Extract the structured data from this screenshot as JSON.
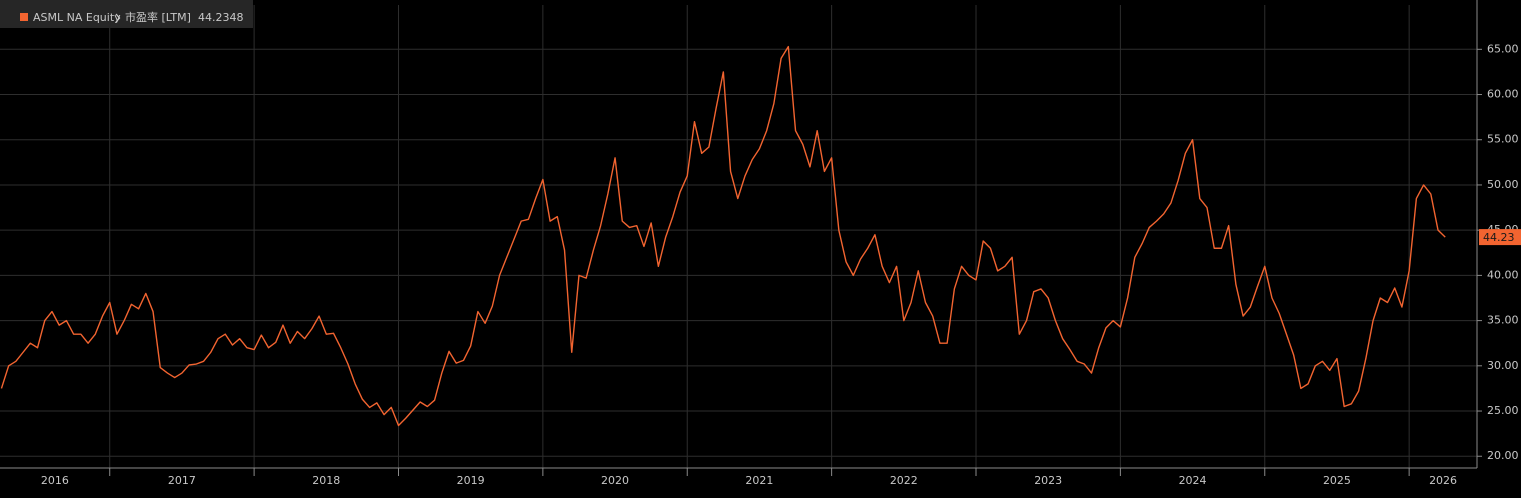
{
  "chart_data": {
    "type": "line",
    "series": [
      {
        "name": "ASML NA Equity",
        "color": "#f26430",
        "values": [
          27.5,
          30,
          30.5,
          31.5,
          32.5,
          32,
          35,
          36,
          34.5,
          35,
          33.5,
          33.5,
          32.5,
          33.5,
          35.5,
          37,
          33.5,
          35,
          36.8,
          36.3,
          38,
          36,
          29.8,
          29.2,
          28.7,
          29.2,
          30.1,
          30.2,
          30.5,
          31.5,
          33,
          33.5,
          32.3,
          33,
          32,
          31.8,
          33.4,
          32,
          32.6,
          34.5,
          32.5,
          33.8,
          33,
          34.1,
          35.5,
          33.5,
          33.6,
          32,
          30.2,
          28,
          26.3,
          25.4,
          25.9,
          24.6,
          25.4,
          23.4,
          24.2,
          25.1,
          26,
          25.5,
          26.2,
          29.2,
          31.6,
          30.3,
          30.6,
          32.2,
          36,
          34.7,
          36.6,
          40,
          42,
          44,
          46,
          46.2,
          48.5,
          50.6,
          46,
          46.5,
          42.8,
          31.5,
          40,
          39.7,
          42.8,
          45.5,
          49,
          53,
          46,
          45.3,
          45.5,
          43.2,
          45.8,
          41,
          44.2,
          46.5,
          49.2,
          51,
          57,
          53.5,
          54.2,
          58.5,
          62.5,
          51.5,
          48.5,
          51,
          52.8,
          54,
          56,
          59,
          64,
          65.3,
          56,
          54.5,
          52,
          56,
          51.5,
          53,
          45,
          41.5,
          40,
          41.8,
          43,
          44.5,
          41,
          39.2,
          41,
          35,
          37,
          40.5,
          37,
          35.5,
          32.5,
          32.5,
          38.5,
          41,
          40,
          39.5,
          43.8,
          43,
          40.5,
          41,
          42,
          33.5,
          35,
          38.2,
          38.5,
          37.5,
          35,
          33,
          31.8,
          30.5,
          30.2,
          29.2,
          32,
          34.2,
          35,
          34.3,
          37.5,
          42,
          43.5,
          45.3,
          46,
          46.8,
          48,
          50.5,
          53.5,
          55,
          48.5,
          47.5,
          43,
          43,
          45.5,
          39,
          35.5,
          36.5,
          38.8,
          41,
          37.5,
          35.8,
          33.5,
          31.2,
          27.5,
          28,
          30,
          30.5,
          29.5,
          30.8,
          25.5,
          25.8,
          27.2,
          30.8,
          35,
          37.5,
          37,
          38.6,
          36.5,
          40.5,
          48.5,
          50,
          49,
          45,
          44.2348
        ]
      }
    ],
    "x": [
      2016.25,
      2016.3,
      2016.35,
      2016.4,
      2016.45,
      2016.5,
      2016.55,
      2016.6,
      2016.65,
      2016.7,
      2016.75,
      2016.8,
      2016.85,
      2016.9,
      2016.95,
      2017.0,
      2017.05,
      2017.1,
      2017.15,
      2017.2,
      2017.25,
      2017.3,
      2017.35,
      2017.4,
      2017.45,
      2017.5,
      2017.55,
      2017.6,
      2017.65,
      2017.7,
      2017.75,
      2017.8,
      2017.85,
      2017.9,
      2017.95,
      2018.0,
      2018.05,
      2018.1,
      2018.15,
      2018.2,
      2018.25,
      2018.3,
      2018.35,
      2018.4,
      2018.45,
      2018.5,
      2018.55,
      2018.6,
      2018.65,
      2018.7,
      2018.75,
      2018.8,
      2018.85,
      2018.9,
      2018.95,
      2019.0,
      2019.05,
      2019.1,
      2019.15,
      2019.2,
      2019.25,
      2019.3,
      2019.35,
      2019.4,
      2019.45,
      2019.5,
      2019.55,
      2019.6,
      2019.65,
      2019.7,
      2019.75,
      2019.8,
      2019.85,
      2019.9,
      2019.95,
      2020.0,
      2020.05,
      2020.1,
      2020.15,
      2020.2,
      2020.25,
      2020.3,
      2020.35,
      2020.4,
      2020.45,
      2020.5,
      2020.55,
      2020.6,
      2020.65,
      2020.7,
      2020.75,
      2020.8,
      2020.85,
      2020.9,
      2020.95,
      2021.0,
      2021.05,
      2021.1,
      2021.15,
      2021.2,
      2021.25,
      2021.3,
      2021.35,
      2021.4,
      2021.45,
      2021.5,
      2021.55,
      2021.6,
      2021.65,
      2021.7,
      2021.75,
      2021.8,
      2021.85,
      2021.9,
      2021.95,
      2022.0,
      2022.05,
      2022.1,
      2022.15,
      2022.2,
      2022.25,
      2022.3,
      2022.35,
      2022.4,
      2022.45,
      2022.5,
      2022.55,
      2022.6,
      2022.65,
      2022.7,
      2022.75,
      2022.8,
      2022.85,
      2022.9,
      2022.95,
      2023.0,
      2023.05,
      2023.1,
      2023.15,
      2023.2,
      2023.25,
      2023.3,
      2023.35,
      2023.4,
      2023.45,
      2023.5,
      2023.55,
      2023.6,
      2023.65,
      2023.7,
      2023.75,
      2023.8,
      2023.85,
      2023.9,
      2023.95,
      2024.0,
      2024.05,
      2024.1,
      2024.15,
      2024.2,
      2024.25,
      2024.3,
      2024.35,
      2024.4,
      2024.45,
      2024.5,
      2024.55,
      2024.6,
      2024.65,
      2024.7,
      2024.75,
      2024.8,
      2024.85,
      2024.9,
      2024.95,
      2025.0,
      2025.05,
      2025.1,
      2025.15,
      2025.2,
      2025.25,
      2025.3,
      2025.35,
      2025.4,
      2025.45,
      2025.5,
      2025.55,
      2025.6,
      2025.65,
      2025.7,
      2025.75,
      2025.8,
      2025.85,
      2025.9,
      2025.95,
      2026.0,
      2026.05,
      2026.1,
      2026.15,
      2026.2,
      2026.25
    ],
    "metric": "市盈率 [LTM]",
    "last_value": 44.2348,
    "last_value_label": "44.23",
    "xlim": [
      2016.24,
      2026.47
    ],
    "ylim": [
      18.7,
      69.9
    ],
    "xticks": [
      {
        "value": 2016,
        "label": "2016"
      },
      {
        "value": 2017,
        "label": "2017"
      },
      {
        "value": 2018,
        "label": "2018"
      },
      {
        "value": 2019,
        "label": "2019"
      },
      {
        "value": 2020,
        "label": "2020"
      },
      {
        "value": 2021,
        "label": "2021"
      },
      {
        "value": 2022,
        "label": "2022"
      },
      {
        "value": 2023,
        "label": "2023"
      },
      {
        "value": 2024,
        "label": "2024"
      },
      {
        "value": 2025,
        "label": "2025"
      },
      {
        "value": 2026,
        "label": "2026"
      }
    ],
    "yticks": [
      {
        "value": 20,
        "label": "20.00"
      },
      {
        "value": 25,
        "label": "25.00"
      },
      {
        "value": 30,
        "label": "30.00"
      },
      {
        "value": 35,
        "label": "35.00"
      },
      {
        "value": 40,
        "label": "40.00"
      },
      {
        "value": 45,
        "label": "45.00"
      },
      {
        "value": 50,
        "label": "50.00"
      },
      {
        "value": 55,
        "label": "55.00"
      },
      {
        "value": 60,
        "label": "60.00"
      },
      {
        "value": 65,
        "label": "65.00"
      }
    ],
    "grid": true
  }
}
